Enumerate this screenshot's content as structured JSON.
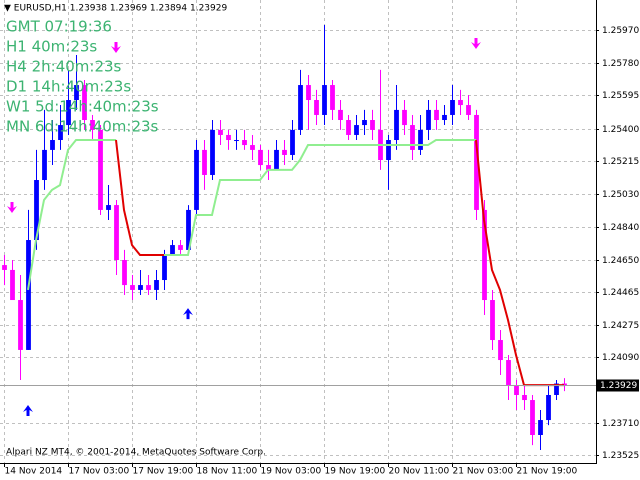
{
  "chart_data": {
    "type": "candlestick",
    "header": "▼ EURUSD,H1  1.23938 1.23969 1.23894 1.23929",
    "footer": "Alpari NZ MT4, © 2001-2014, MetaQuotes Software Corp.",
    "annotations": [
      "GMT 07:19:36",
      "H1  40m:23s",
      "H4  2h:40m:23s",
      "D1  14h:40m:23s",
      "W1  5d:14h:40m:23s",
      "MN  6d:14h:40m:23s"
    ],
    "xlim": [
      -0.5,
      74
    ],
    "xticks": [
      {
        "value": 0,
        "label": "14 Nov 2014"
      },
      {
        "value": 8,
        "label": "17 Nov 03:00"
      },
      {
        "value": 16,
        "label": "17 Nov 19:00"
      },
      {
        "value": 24,
        "label": "18 Nov 11:00"
      },
      {
        "value": 32,
        "label": "19 Nov 03:00"
      },
      {
        "value": 40,
        "label": "19 Nov 19:00"
      },
      {
        "value": 48,
        "label": "20 Nov 11:00"
      },
      {
        "value": 56,
        "label": "21 Nov 03:00"
      },
      {
        "value": 64,
        "label": "21 Nov 19:00"
      }
    ],
    "ylim": [
      1.23481,
      1.26143
    ],
    "yticks": [
      {
        "value": 1.2597,
        "label": "1.25970"
      },
      {
        "value": 1.2578,
        "label": "1.25780"
      },
      1.25595,
      {
        "value": 1.254,
        "label": "1.25400"
      },
      1.25215,
      {
        "value": 1.2503,
        "label": "1.25030"
      },
      {
        "value": 1.2484,
        "label": "1.24840"
      },
      {
        "value": 1.2465,
        "label": "1.24650"
      },
      1.24465,
      1.24275,
      {
        "value": 1.2409,
        "label": "1.24090"
      },
      {
        "value": 1.2371,
        "label": "1.23710"
      },
      1.23525
    ],
    "grid": true,
    "up_color": "#0000ff",
    "down_color": "#ff00ff",
    "open": [
      1.24619,
      1.24591,
      1.24418,
      1.24131,
      1.24763,
      1.25108,
      1.25281,
      1.25338,
      1.25424,
      1.25568,
      1.25654,
      1.25453,
      1.25396,
      1.24936,
      1.24964,
      1.24648,
      1.24504,
      1.24476,
      1.24504,
      1.24476,
      1.24533,
      1.24677,
      1.24734,
      1.24706,
      1.24936,
      1.25281,
      1.25137,
      1.25396,
      1.25367,
      1.25338,
      1.25338,
      1.25309,
      1.25281,
      1.25194,
      1.25166,
      1.25281,
      1.25252,
      1.25396,
      1.25654,
      1.25568,
      1.25482,
      1.25654,
      1.25511,
      1.25453,
      1.25367,
      1.25424,
      1.25453,
      1.25396,
      1.25223,
      1.25338,
      1.25511,
      1.25424,
      1.25281,
      1.25396,
      1.25511,
      1.25453,
      1.25482,
      1.25568,
      1.25539,
      1.25482,
      1.24936,
      1.24418,
      1.24188,
      1.24073,
      1.23929,
      1.23872,
      1.23843,
      1.23642,
      1.23728,
      1.23872,
      1.23938
    ],
    "high": [
      1.24677,
      1.24648,
      1.24562,
      1.24936,
      1.25281,
      1.25511,
      1.25453,
      1.25539,
      1.25741,
      1.25827,
      1.25683,
      1.25482,
      1.25424,
      1.25079,
      1.24993,
      1.24706,
      1.24562,
      1.24591,
      1.24562,
      1.24591,
      1.24706,
      1.24763,
      1.24763,
      1.24964,
      1.25338,
      1.25338,
      1.25453,
      1.25453,
      1.25396,
      1.25396,
      1.25396,
      1.25367,
      1.25309,
      1.25281,
      1.25338,
      1.25338,
      1.25453,
      1.25741,
      1.25712,
      1.25626,
      1.25999,
      1.25683,
      1.25568,
      1.25482,
      1.25482,
      1.25511,
      1.25511,
      1.25741,
      1.25367,
      1.25654,
      1.25568,
      1.25482,
      1.25482,
      1.25568,
      1.25568,
      1.25539,
      1.25654,
      1.25626,
      1.25597,
      1.25511,
      1.24993,
      1.24476,
      1.24246,
      1.24102,
      1.23958,
      1.23929,
      1.23872,
      1.23786,
      1.23929,
      1.23958,
      1.23969
    ],
    "low": [
      1.24504,
      1.24418,
      1.23958,
      1.24131,
      1.24706,
      1.25051,
      1.25194,
      1.25281,
      1.25367,
      1.25511,
      1.25396,
      1.25338,
      1.24907,
      1.24878,
      1.24562,
      1.24447,
      1.24418,
      1.24447,
      1.24447,
      1.24418,
      1.24476,
      1.24677,
      1.24677,
      1.24706,
      1.24907,
      1.25051,
      1.25108,
      1.25309,
      1.25281,
      1.25281,
      1.25281,
      1.25223,
      1.25166,
      1.25108,
      1.25166,
      1.25194,
      1.25223,
      1.25367,
      1.25396,
      1.25424,
      1.25424,
      1.25453,
      1.25396,
      1.25338,
      1.25338,
      1.25367,
      1.25338,
      1.25166,
      1.25051,
      1.25281,
      1.25367,
      1.25223,
      1.25252,
      1.25338,
      1.25396,
      1.25424,
      1.25424,
      1.25482,
      1.25453,
      1.24878,
      1.24332,
      1.24131,
      1.23987,
      1.23843,
      1.23786,
      1.23786,
      1.23584,
      1.23556,
      1.23699,
      1.23843,
      1.23894
    ],
    "close": [
      1.24591,
      1.24418,
      1.24131,
      1.24763,
      1.25108,
      1.25281,
      1.25338,
      1.25424,
      1.25568,
      1.25654,
      1.25453,
      1.25396,
      1.24936,
      1.24964,
      1.24648,
      1.24504,
      1.24476,
      1.24504,
      1.24476,
      1.24533,
      1.24677,
      1.24734,
      1.24706,
      1.24936,
      1.25281,
      1.25137,
      1.25396,
      1.25367,
      1.25338,
      1.25338,
      1.25309,
      1.25281,
      1.25194,
      1.25166,
      1.25281,
      1.25252,
      1.25396,
      1.25654,
      1.25568,
      1.25482,
      1.25654,
      1.25511,
      1.25453,
      1.25367,
      1.25424,
      1.25453,
      1.25396,
      1.25223,
      1.25338,
      1.25511,
      1.25424,
      1.25281,
      1.25396,
      1.25511,
      1.25453,
      1.25482,
      1.25568,
      1.25539,
      1.25482,
      1.24936,
      1.24418,
      1.24188,
      1.24073,
      1.23929,
      1.23872,
      1.23843,
      1.23642,
      1.23728,
      1.23872,
      1.23938,
      1.23929
    ],
    "lines": [
      {
        "color": "#90ee90",
        "values": [
          null,
          null,
          null,
          1.24476,
          1.24763,
          1.24993,
          1.25051,
          1.25079,
          1.25281,
          1.25338,
          1.25338,
          1.25338,
          1.25338,
          1.25338,
          1.25338,
          null,
          null,
          null,
          null,
          null,
          1.24677,
          1.24677,
          1.24677,
          1.24677,
          1.24907,
          1.24907,
          1.24907,
          1.25108,
          1.25108,
          1.25108,
          1.25108,
          1.25108,
          1.25108,
          1.25166,
          1.25166,
          1.25166,
          1.25166,
          1.25223,
          1.25309,
          1.25309,
          1.25309,
          1.25309,
          1.25309,
          1.25309,
          1.25309,
          1.25309,
          1.25309,
          1.25309,
          1.25309,
          1.25309,
          1.25309,
          1.25309,
          1.25309,
          1.25309,
          1.25338,
          1.25338,
          1.25338,
          1.25338,
          1.25338,
          1.25338,
          null,
          null,
          null,
          null,
          null,
          null,
          null,
          null,
          null,
          null,
          null
        ]
      },
      {
        "color": "#e00000",
        "values": [
          null,
          null,
          null,
          null,
          null,
          null,
          null,
          null,
          null,
          null,
          null,
          null,
          null,
          null,
          1.25338,
          1.24936,
          1.24734,
          1.24677,
          1.24677,
          1.24677,
          1.24677,
          null,
          null,
          null,
          null,
          null,
          null,
          null,
          null,
          null,
          null,
          null,
          null,
          null,
          null,
          null,
          null,
          null,
          null,
          null,
          null,
          null,
          null,
          null,
          null,
          null,
          null,
          null,
          null,
          null,
          null,
          null,
          null,
          null,
          null,
          null,
          null,
          null,
          null,
          1.25338,
          1.24878,
          1.24591,
          1.24476,
          1.24303,
          1.24102,
          1.23929,
          1.23929,
          1.23929,
          1.23929,
          1.23929,
          1.23929
        ]
      }
    ],
    "markers": [
      {
        "shape": "arrow-down",
        "color": "#ff00ff",
        "x": [
          1,
          14,
          59
        ],
        "values": [
          1.24947,
          1.25867,
          1.2589
        ]
      },
      {
        "shape": "arrow-up",
        "color": "#0000ff",
        "x": [
          3,
          23
        ],
        "values": [
          1.23786,
          1.24343
        ]
      }
    ]
  }
}
